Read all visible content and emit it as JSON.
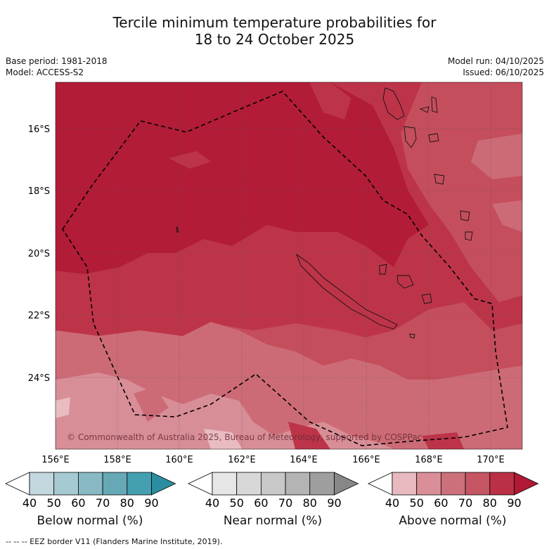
{
  "title": {
    "line1": "Tercile minimum temperature probabilities for",
    "line2": "18 to 24 October 2025"
  },
  "meta": {
    "base_period": "Base period: 1981-2018",
    "model": "Model: ACCESS-S2",
    "model_run": "Model run: 04/10/2025",
    "issued": "Issued: 06/10/2025"
  },
  "map": {
    "lon_ticks": [
      "156°E",
      "158°E",
      "160°E",
      "162°E",
      "164°E",
      "166°E",
      "168°E",
      "170°E"
    ],
    "lat_ticks": [
      "16°S",
      "18°S",
      "20°S",
      "22°S",
      "24°S"
    ],
    "copyright": "© Commonwealth of Australia 2025, Bureau of Meteorology, supported by COSPPac"
  },
  "colorbars": [
    {
      "label": "Below normal (%)",
      "ticks": [
        "40",
        "50",
        "60",
        "70",
        "80",
        "90"
      ],
      "colors": [
        "#ffffff",
        "#c2d8de",
        "#a6cad2",
        "#88b9c4",
        "#66a8b6",
        "#44a0b0",
        "#2b8ea0"
      ]
    },
    {
      "label": "Near normal (%)",
      "ticks": [
        "40",
        "50",
        "60",
        "70",
        "80",
        "90"
      ],
      "colors": [
        "#ffffff",
        "#e6e6e6",
        "#d8d8d8",
        "#c8c8c8",
        "#b4b4b4",
        "#9e9e9e",
        "#878787"
      ]
    },
    {
      "label": "Above normal (%)",
      "ticks": [
        "40",
        "50",
        "60",
        "70",
        "80",
        "90"
      ],
      "colors": [
        "#ffffff",
        "#e8bac0",
        "#d98e98",
        "#cc707b",
        "#c65663",
        "#bb3044",
        "#b01a36"
      ]
    }
  ],
  "footnote": "-- -- -- EEZ border V11 (Flanders Marine Institute, 2019).",
  "colors": {
    "p90": "#b21c37",
    "p80": "#bd3449",
    "p70": "#c54e5c",
    "p60": "#cc6b76",
    "p50": "#d88e97",
    "p40": "#e8bcc1"
  }
}
